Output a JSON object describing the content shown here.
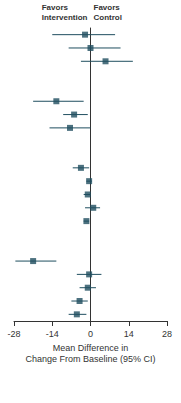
{
  "chart_data": {
    "type": "forest",
    "x_label": "Mean Difference in\nChange From Baseline (95% CI)",
    "annotations": [
      "Favors\nIntervention",
      "Favors\nControl"
    ],
    "categories": [
      null,
      null,
      null,
      null,
      null,
      null,
      null,
      null,
      null,
      null,
      null,
      null,
      null,
      null,
      null,
      null,
      null,
      null,
      null,
      null,
      null,
      null
    ],
    "values": [
      -2,
      0,
      5.5,
      null,
      null,
      -12.5,
      -6,
      -7.5,
      null,
      null,
      -3.5,
      -0.5,
      -1,
      1,
      -1.5,
      null,
      null,
      -21,
      -0.5,
      -1,
      -4,
      -5
    ],
    "ci_low": [
      -14,
      -8,
      -3.5,
      null,
      null,
      -21,
      -10,
      -15,
      null,
      null,
      -6.5,
      -1.5,
      -2.5,
      -2,
      -2.5,
      null,
      null,
      -27.5,
      -5,
      -4,
      -7,
      -8
    ],
    "ci_high": [
      9,
      11,
      15.5,
      null,
      null,
      -2.5,
      -1,
      0,
      null,
      null,
      -0.5,
      0.5,
      0,
      3.5,
      -0.5,
      null,
      null,
      -12.5,
      4,
      2,
      -1,
      -1.5
    ],
    "color": "#1f4e5f",
    "marker": "square",
    "xlim": [
      -28,
      28
    ],
    "xticks": [
      -28,
      -14,
      0,
      14,
      28
    ],
    "tick_labels": "x",
    "grid": false
  }
}
